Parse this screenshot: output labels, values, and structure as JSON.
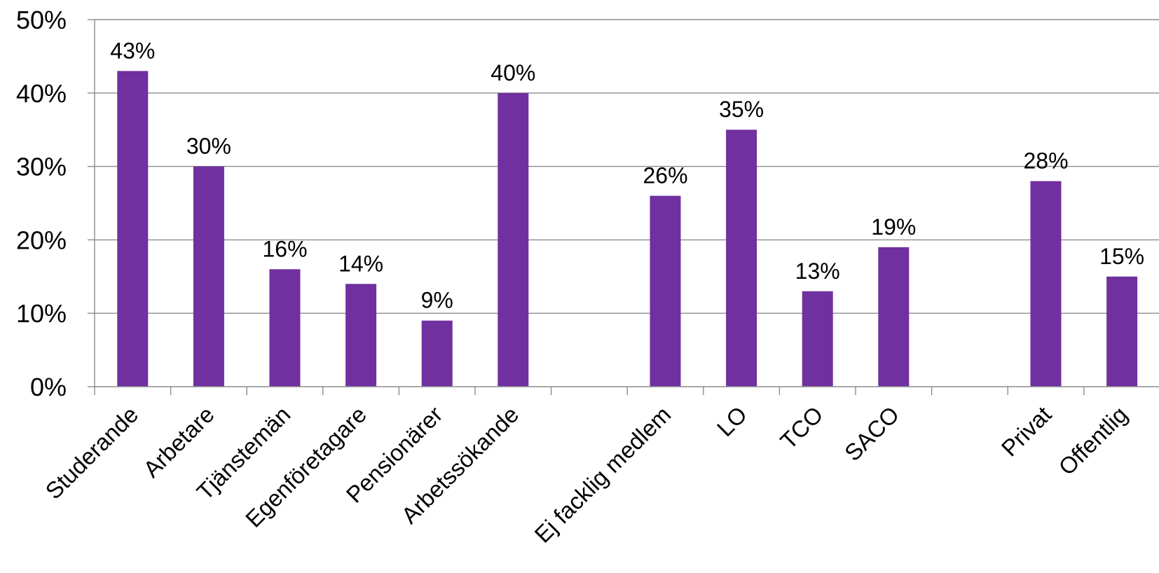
{
  "colors": {
    "bar": "#7030a0",
    "gridline": "#8c8c8c",
    "axis": "#8c8c8c",
    "text": "#000000"
  },
  "chart_data": {
    "type": "bar",
    "title": "",
    "xlabel": "",
    "ylabel": "",
    "ylim": [
      0,
      50
    ],
    "yticks": [
      "0%",
      "10%",
      "20%",
      "30%",
      "40%",
      "50%"
    ],
    "grid": true,
    "legend": "none",
    "categories": [
      "Studerande",
      "Arbetare",
      "Tjänstemän",
      "Egenföretagare",
      "Pensionärer",
      "Arbetssökande",
      "",
      "Ej facklig medlem",
      "LO",
      "TCO",
      "SACO",
      "",
      "Privat",
      "Offentlig"
    ],
    "values": [
      43,
      30,
      16,
      14,
      9,
      40,
      null,
      26,
      35,
      13,
      19,
      null,
      28,
      15
    ],
    "data_labels": [
      "43%",
      "30%",
      "16%",
      "14%",
      "9%",
      "40%",
      "",
      "26%",
      "35%",
      "13%",
      "19%",
      "",
      "28%",
      "15%"
    ]
  }
}
